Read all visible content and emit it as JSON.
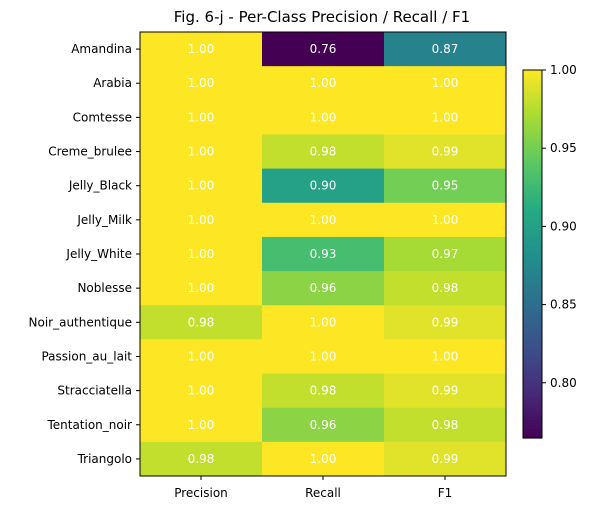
{
  "chart_data": {
    "type": "heatmap",
    "title": "Fig. 6-j - Per-Class Precision / Recall / F1",
    "xlabel": "",
    "ylabel": "",
    "columns": [
      "Precision",
      "Recall",
      "F1"
    ],
    "rows": [
      "Amandina",
      "Arabia",
      "Comtesse",
      "Creme_brulee",
      "Jelly_Black",
      "Jelly_Milk",
      "Jelly_White",
      "Noblesse",
      "Noir_authentique",
      "Passion_au_lait",
      "Stracciatella",
      "Tentation_noir",
      "Triangolo"
    ],
    "values": [
      [
        1.0,
        0.76,
        0.87
      ],
      [
        1.0,
        1.0,
        1.0
      ],
      [
        1.0,
        1.0,
        1.0
      ],
      [
        1.0,
        0.98,
        0.99
      ],
      [
        1.0,
        0.9,
        0.95
      ],
      [
        1.0,
        1.0,
        1.0
      ],
      [
        1.0,
        0.93,
        0.97
      ],
      [
        1.0,
        0.96,
        0.98
      ],
      [
        0.98,
        1.0,
        0.99
      ],
      [
        1.0,
        1.0,
        1.0
      ],
      [
        1.0,
        0.98,
        0.99
      ],
      [
        1.0,
        0.96,
        0.98
      ],
      [
        0.98,
        1.0,
        0.99
      ]
    ],
    "labels": [
      [
        "1.00",
        "0.76",
        "0.87"
      ],
      [
        "1.00",
        "1.00",
        "1.00"
      ],
      [
        "1.00",
        "1.00",
        "1.00"
      ],
      [
        "1.00",
        "0.98",
        "0.99"
      ],
      [
        "1.00",
        "0.90",
        "0.95"
      ],
      [
        "1.00",
        "1.00",
        "1.00"
      ],
      [
        "1.00",
        "0.93",
        "0.97"
      ],
      [
        "1.00",
        "0.96",
        "0.98"
      ],
      [
        "0.98",
        "1.00",
        "0.99"
      ],
      [
        "1.00",
        "1.00",
        "1.00"
      ],
      [
        "1.00",
        "0.98",
        "0.99"
      ],
      [
        "1.00",
        "0.96",
        "0.98"
      ],
      [
        "0.98",
        "1.00",
        "0.99"
      ]
    ],
    "colormap": "viridis",
    "color_range": [
      0.7647,
      1.0
    ],
    "colorbar_ticks": [
      "0.80",
      "0.85",
      "0.90",
      "0.95",
      "1.00"
    ],
    "colorbar_tick_values": [
      0.8,
      0.85,
      0.9,
      0.95,
      1.0
    ],
    "cell_label_color": "#ffffff",
    "grid": false
  }
}
